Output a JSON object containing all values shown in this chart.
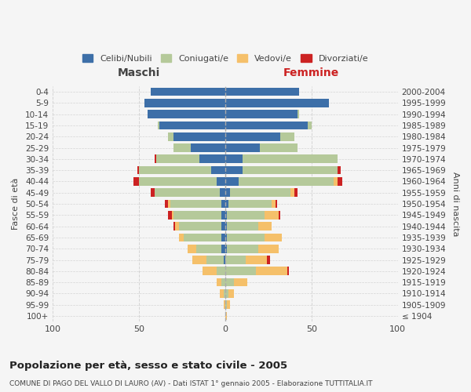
{
  "age_groups": [
    "100+",
    "95-99",
    "90-94",
    "85-89",
    "80-84",
    "75-79",
    "70-74",
    "65-69",
    "60-64",
    "55-59",
    "50-54",
    "45-49",
    "40-44",
    "35-39",
    "30-34",
    "25-29",
    "20-24",
    "15-19",
    "10-14",
    "5-9",
    "0-4"
  ],
  "birth_years": [
    "≤ 1904",
    "1905-1909",
    "1910-1914",
    "1915-1919",
    "1920-1924",
    "1925-1929",
    "1930-1934",
    "1935-1939",
    "1940-1944",
    "1945-1949",
    "1950-1954",
    "1955-1959",
    "1960-1964",
    "1965-1969",
    "1970-1974",
    "1975-1979",
    "1980-1984",
    "1985-1989",
    "1990-1994",
    "1995-1999",
    "2000-2004"
  ],
  "colors": {
    "celibi": "#3d6fa8",
    "coniugati": "#b5c99a",
    "vedovi": "#f5c06a",
    "divorziati": "#cc2222"
  },
  "males": {
    "celibi": [
      0,
      0,
      0,
      0,
      0,
      1,
      2,
      2,
      2,
      2,
      2,
      3,
      5,
      8,
      15,
      20,
      30,
      38,
      45,
      47,
      43
    ],
    "coniugati": [
      0,
      0,
      1,
      2,
      5,
      10,
      15,
      22,
      25,
      28,
      30,
      38,
      45,
      42,
      25,
      10,
      3,
      1,
      0,
      0,
      0
    ],
    "vedovi": [
      0,
      1,
      2,
      3,
      8,
      8,
      5,
      3,
      2,
      1,
      1,
      0,
      0,
      0,
      0,
      0,
      0,
      0,
      0,
      0,
      0
    ],
    "divorziati": [
      0,
      0,
      0,
      0,
      0,
      0,
      0,
      0,
      1,
      2,
      2,
      2,
      3,
      1,
      1,
      0,
      0,
      0,
      0,
      0,
      0
    ]
  },
  "females": {
    "celibi": [
      0,
      0,
      0,
      0,
      0,
      0,
      1,
      1,
      1,
      1,
      2,
      3,
      8,
      10,
      10,
      20,
      32,
      48,
      42,
      60,
      43
    ],
    "coniugati": [
      0,
      1,
      2,
      5,
      18,
      12,
      18,
      22,
      18,
      22,
      25,
      35,
      55,
      55,
      55,
      22,
      8,
      2,
      1,
      0,
      0
    ],
    "vedovi": [
      1,
      2,
      3,
      8,
      18,
      12,
      12,
      10,
      8,
      8,
      2,
      2,
      2,
      0,
      0,
      0,
      0,
      0,
      0,
      0,
      0
    ],
    "divorziati": [
      0,
      0,
      0,
      0,
      1,
      2,
      0,
      0,
      0,
      1,
      1,
      2,
      3,
      2,
      0,
      0,
      0,
      0,
      0,
      0,
      0
    ]
  },
  "xlim": 100,
  "title": "Popolazione per età, sesso e stato civile - 2005",
  "subtitle": "COMUNE DI PAGO DEL VALLO DI LAURO (AV) - Dati ISTAT 1° gennaio 2005 - Elaborazione TUTTITALIA.IT",
  "ylabel_left": "Fasce di età",
  "ylabel_right": "Anni di nascita",
  "xlabel_left": "Maschi",
  "xlabel_right": "Femmine",
  "legend_labels": [
    "Celibi/Nubili",
    "Coniugati/e",
    "Vedovi/e",
    "Divorziati/e"
  ],
  "bg_color": "#f5f5f5",
  "grid_color": "#cccccc"
}
